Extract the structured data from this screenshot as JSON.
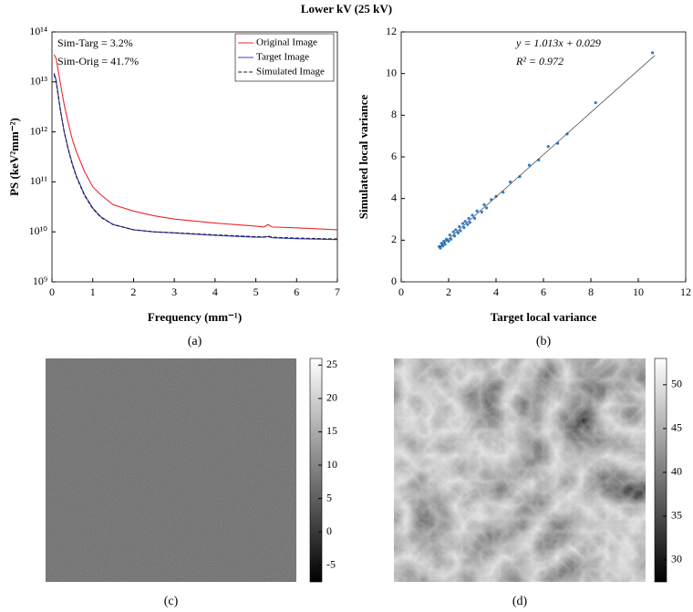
{
  "title": "Lower kV (25 kV)",
  "chart_data": [
    {
      "type": "line",
      "panel_label": "(a)",
      "xlabel": "Frequency (mm⁻¹)",
      "ylabel": "PS (keV²mm⁻²)",
      "xlim": [
        0,
        7
      ],
      "xticks": [
        0,
        1,
        2,
        3,
        4,
        5,
        6,
        7
      ],
      "ylim": [
        1000000000.0,
        100000000000000.0
      ],
      "log_y": true,
      "yticks": [
        {
          "value": 1000000000.0,
          "label": "10⁹"
        },
        {
          "value": 10000000000.0,
          "label": "10¹⁰"
        },
        {
          "value": 100000000000.0,
          "label": "10¹¹"
        },
        {
          "value": 1000000000000.0,
          "label": "10¹²"
        },
        {
          "value": 10000000000000.0,
          "label": "10¹³"
        },
        {
          "value": 100000000000000.0,
          "label": "10¹⁴"
        }
      ],
      "annotations": [
        "Sim-Targ = 3.2%",
        "Sim-Orig = 41.7%"
      ],
      "legend": "upper right",
      "x": [
        0.05,
        0.1,
        0.2,
        0.3,
        0.4,
        0.5,
        0.6,
        0.8,
        1,
        1.2,
        1.5,
        2,
        2.5,
        3,
        4,
        5,
        5.2,
        5.3,
        5.4,
        6,
        7
      ],
      "series": [
        {
          "name": "Original Image",
          "color": "#e8282b",
          "line_style": "solid",
          "values": [
            35000000000000.0,
            30000000000000.0,
            10000000000000.0,
            3500000000000.0,
            1500000000000.0,
            700000000000.0,
            400000000000.0,
            160000000000.0,
            80000000000.0,
            55000000000.0,
            35000000000.0,
            26000000000.0,
            21000000000.0,
            18000000000.0,
            15000000000.0,
            13000000000.0,
            12500000000.0,
            14000000000.0,
            12500000000.0,
            12000000000.0,
            11000000000.0
          ]
        },
        {
          "name": "Target Image",
          "color": "#3b3bd6",
          "line_style": "solid",
          "values": [
            15000000000000.0,
            11000000000000.0,
            3000000000000.0,
            1000000000000.0,
            450000000000.0,
            230000000000.0,
            130000000000.0,
            55000000000.0,
            30000000000.0,
            20000000000.0,
            14000000000.0,
            11000000000.0,
            10000000000.0,
            9500000000.0,
            8500000000.0,
            7800000000.0,
            7800000000.0,
            8000000000.0,
            7600000000.0,
            7300000000.0,
            7000000000.0
          ]
        },
        {
          "name": "Simulated Image",
          "color": "#1a1a2e",
          "line_style": "dashed",
          "values": [
            14000000000000.0,
            10500000000000.0,
            2900000000000.0,
            1000000000000.0,
            440000000000.0,
            220000000000.0,
            125000000000.0,
            53000000000.0,
            29000000000.0,
            19500000000.0,
            14000000000.0,
            11000000000.0,
            10000000000.0,
            9600000000.0,
            8700000000.0,
            8000000000.0,
            7900000000.0,
            8200000000.0,
            7800000000.0,
            7500000000.0,
            7200000000.0
          ]
        }
      ]
    },
    {
      "type": "scatter",
      "panel_label": "(b)",
      "xlabel": "Target local variance",
      "ylabel": "Simulated local variance",
      "xlim": [
        0,
        12
      ],
      "xticks": [
        0,
        2,
        4,
        6,
        8,
        10,
        12
      ],
      "ylim": [
        0,
        12
      ],
      "yticks": [
        0,
        2,
        4,
        6,
        8,
        10,
        12
      ],
      "annotations": [
        "y = 1.013x + 0.029",
        "R² = 0.972"
      ],
      "color": "#2a7fd4",
      "x": [
        1.6,
        1.65,
        1.7,
        1.75,
        1.8,
        1.85,
        1.9,
        2.0,
        2.05,
        2.1,
        2.2,
        2.25,
        2.3,
        2.4,
        2.45,
        2.5,
        2.6,
        2.65,
        2.7,
        2.8,
        2.85,
        2.9,
        3.0,
        3.1,
        3.2,
        3.4,
        3.5,
        3.6,
        3.8,
        4.0,
        4.3,
        4.6,
        5.0,
        5.4,
        5.8,
        6.2,
        6.6,
        7.0,
        8.2,
        10.6
      ],
      "values": [
        1.7,
        1.62,
        1.85,
        1.72,
        1.95,
        1.8,
        2.05,
        1.95,
        2.25,
        2.05,
        2.4,
        2.2,
        2.5,
        2.35,
        2.65,
        2.45,
        2.8,
        2.6,
        2.9,
        2.75,
        3.05,
        2.85,
        3.2,
        3.05,
        3.4,
        3.35,
        3.7,
        3.55,
        3.95,
        4.1,
        4.3,
        4.8,
        5.05,
        5.6,
        5.85,
        6.5,
        6.65,
        7.1,
        8.6,
        11.0
      ],
      "fit": {
        "color": "#333333",
        "x": [
          1.6,
          10.7
        ],
        "values": [
          1.65,
          10.87
        ]
      }
    },
    {
      "type": "image",
      "panel_label": "(c)",
      "texture": "noise",
      "clim": [
        -7.5,
        26
      ],
      "cticks": [
        -5,
        0,
        5,
        10,
        15,
        20,
        25
      ]
    },
    {
      "type": "image",
      "panel_label": "(d)",
      "texture": "tissue",
      "clim": [
        27.5,
        53
      ],
      "cticks": [
        30,
        35,
        40,
        45,
        50
      ]
    }
  ]
}
